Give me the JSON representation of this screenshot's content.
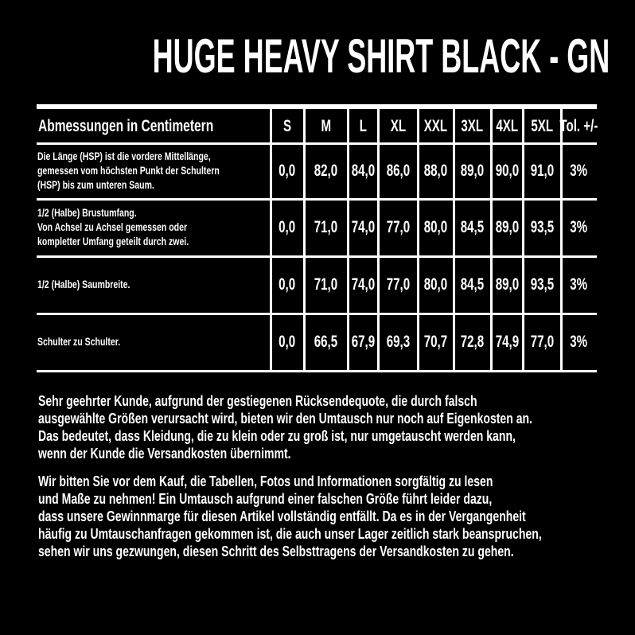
{
  "title": "HUGE HEAVY SHIRT BLACK - GN",
  "table": {
    "header": [
      "Abmessungen in Centimetern",
      "S",
      "M",
      "L",
      "XL",
      "XXL",
      "3XL",
      "4XL",
      "5XL",
      "Tol. +/-"
    ],
    "rows": [
      {
        "label": [
          "Die Länge (HSP) ist die vordere Mittellänge,",
          "gemessen vom höchsten Punkt der Schultern",
          "(HSP) bis zum unteren Saum."
        ],
        "cells": [
          "0,0",
          "82,0",
          "84,0",
          "86,0",
          "88,0",
          "89,0",
          "90,0",
          "91,0",
          "3%"
        ]
      },
      {
        "label": [
          "1/2 (Halbe) Brustumfang.",
          "Von Achsel zu Achsel gemessen oder",
          "kompletter Umfang geteilt durch zwei."
        ],
        "cells": [
          "0,0",
          "71,0",
          "74,0",
          "77,0",
          "80,0",
          "84,5",
          "89,0",
          "93,5",
          "3%"
        ]
      },
      {
        "label": [
          "1/2 (Halbe) Saumbreite."
        ],
        "cells": [
          "0,0",
          "71,0",
          "74,0",
          "77,0",
          "80,0",
          "84,5",
          "89,0",
          "93,5",
          "3%"
        ]
      },
      {
        "label": [
          "Schulter zu Schulter."
        ],
        "cells": [
          "0,0",
          "66,5",
          "67,9",
          "69,3",
          "70,7",
          "72,8",
          "74,9",
          "77,0",
          "3%"
        ]
      }
    ]
  },
  "notes": [
    [
      "Sehr geehrter Kunde, aufgrund der gestiegenen Rücksendequote, die durch falsch",
      "ausgewählte Größen verursacht wird, bieten wir den Umtausch nur noch auf Eigenkosten an.",
      "Das bedeutet, dass Kleidung, die zu klein oder zu groß ist, nur umgetauscht werden kann,",
      "wenn der Kunde die Versandkosten übernimmt."
    ],
    [
      "Wir bitten Sie vor dem Kauf, die Tabellen, Fotos und Informationen sorgfältig zu lesen",
      "und Maße zu nehmen! Ein Umtausch aufgrund einer falschen Größe führt leider dazu,",
      "dass unsere Gewinnmarge für diesen Artikel vollständig entfällt. Da es in der Vergangenheit",
      "häufig zu Umtauschanfragen gekommen ist, die auch unser Lager zeitlich stark beanspruchen,",
      "sehen wir uns gezwungen, diesen Schritt des Selbsttragens der Versandkosten zu gehen."
    ]
  ]
}
